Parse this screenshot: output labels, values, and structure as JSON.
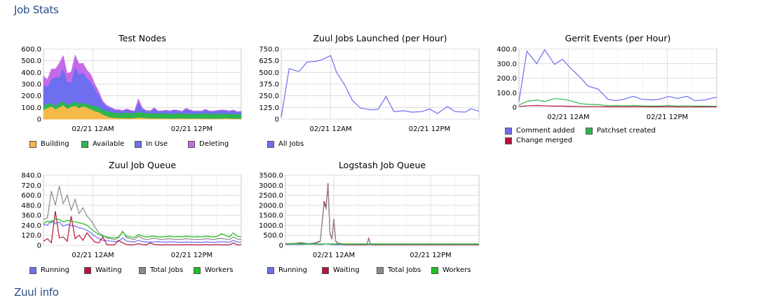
{
  "sections": {
    "job_stats": "Job Stats",
    "zuul_info": "Zuul info"
  },
  "colors": {
    "section_title": "#2a4f86",
    "grid": "#dcdcdc",
    "vgrid": "#d2b8d6"
  },
  "chart_data": [
    {
      "id": "test-nodes",
      "type": "area",
      "title": "Test Nodes",
      "stacked": true,
      "ylim": [
        0,
        600
      ],
      "yticks": [
        "600.0",
        "500.0",
        "400.0",
        "300.0",
        "200.0",
        "100.0",
        "0"
      ],
      "x_range": [
        0,
        100
      ],
      "xticks": [
        {
          "x": 25,
          "label": "02/21 12AM"
        },
        {
          "x": 75,
          "label": "02/21 12PM"
        }
      ],
      "x": [
        0,
        2,
        4,
        6,
        8,
        10,
        12,
        14,
        16,
        18,
        20,
        22,
        24,
        26,
        28,
        30,
        32,
        34,
        36,
        38,
        40,
        42,
        44,
        46,
        48,
        50,
        52,
        54,
        56,
        58,
        60,
        62,
        64,
        66,
        68,
        70,
        72,
        74,
        76,
        78,
        80,
        82,
        84,
        86,
        88,
        90,
        92,
        94,
        96,
        98,
        100
      ],
      "series": [
        {
          "name": "Building",
          "color": "#f5b94a",
          "values": [
            80,
            95,
            110,
            85,
            100,
            120,
            90,
            105,
            115,
            95,
            110,
            100,
            85,
            70,
            60,
            40,
            25,
            15,
            12,
            10,
            10,
            8,
            8,
            10,
            15,
            12,
            10,
            8,
            8,
            7,
            7,
            8,
            6,
            6,
            7,
            8,
            6,
            6,
            6,
            7,
            6,
            6,
            5,
            6,
            6,
            5,
            8,
            6,
            5,
            5,
            4
          ]
        },
        {
          "name": "Available",
          "color": "#2db550",
          "values": [
            40,
            35,
            30,
            25,
            40,
            35,
            30,
            30,
            35,
            40,
            30,
            30,
            35,
            40,
            45,
            40,
            45,
            50,
            40,
            45,
            40,
            50,
            45,
            40,
            50,
            45,
            40,
            45,
            40,
            40,
            45,
            40,
            40,
            40,
            45,
            40,
            40,
            40,
            40,
            40,
            40,
            45,
            40,
            40,
            45,
            40,
            40,
            40,
            40,
            40,
            40
          ]
        },
        {
          "name": "In Use",
          "color": "#6e6ef0",
          "values": [
            170,
            150,
            200,
            250,
            220,
            280,
            200,
            180,
            300,
            250,
            260,
            220,
            200,
            150,
            100,
            60,
            40,
            30,
            25,
            20,
            20,
            25,
            20,
            15,
            80,
            30,
            20,
            15,
            40,
            20,
            15,
            25,
            20,
            30,
            20,
            15,
            40,
            30,
            20,
            20,
            20,
            30,
            20,
            20,
            20,
            30,
            25,
            20,
            30,
            15,
            20
          ]
        },
        {
          "name": "Deleting",
          "color": "#c56ae8",
          "values": [
            80,
            60,
            90,
            70,
            120,
            110,
            70,
            90,
            100,
            90,
            80,
            70,
            60,
            40,
            30,
            15,
            10,
            8,
            8,
            8,
            5,
            5,
            5,
            5,
            30,
            10,
            5,
            5,
            10,
            5,
            5,
            5,
            5,
            5,
            5,
            5,
            8,
            5,
            5,
            5,
            5,
            5,
            5,
            5,
            5,
            5,
            5,
            5,
            5,
            5,
            5
          ]
        }
      ]
    },
    {
      "id": "zuul-jobs-launched",
      "type": "line",
      "title": "Zuul Jobs Launched (per Hour)",
      "ylim": [
        0,
        750
      ],
      "yticks": [
        "750.0",
        "625.0",
        "500.0",
        "375.0",
        "250.0",
        "125.0",
        "0"
      ],
      "x_range": [
        0,
        100
      ],
      "xticks": [
        {
          "x": 25,
          "label": "02/21 12AM"
        },
        {
          "x": 75,
          "label": "02/21 12PM"
        }
      ],
      "x": [
        0,
        4,
        9,
        13,
        18,
        21,
        25,
        28,
        32,
        36,
        40,
        45,
        49,
        53,
        57,
        62,
        66,
        71,
        75,
        79,
        84,
        88,
        93,
        96,
        100
      ],
      "series": [
        {
          "name": "All Jobs",
          "color": "#6e6ef0",
          "values": [
            20,
            540,
            510,
            610,
            620,
            640,
            680,
            500,
            370,
            200,
            120,
            100,
            105,
            240,
            80,
            90,
            75,
            80,
            110,
            60,
            135,
            80,
            75,
            110,
            85
          ]
        }
      ]
    },
    {
      "id": "gerrit-events",
      "type": "line",
      "title": "Gerrit Events (per Hour)",
      "ylim": [
        0,
        400
      ],
      "yticks": [
        "400.0",
        "300.0",
        "200.0",
        "100.0",
        "0"
      ],
      "x_range": [
        0,
        100
      ],
      "xticks": [
        {
          "x": 25,
          "label": "02/21 12AM"
        },
        {
          "x": 75,
          "label": "02/21 12PM"
        }
      ],
      "x": [
        0,
        4,
        9,
        13,
        18,
        22,
        26,
        31,
        35,
        40,
        45,
        49,
        53,
        58,
        62,
        67,
        71,
        76,
        80,
        85,
        89,
        94,
        100
      ],
      "series": [
        {
          "name": "Comment added",
          "color": "#6e6ef0",
          "values": [
            40,
            385,
            300,
            395,
            295,
            330,
            270,
            205,
            145,
            125,
            55,
            45,
            55,
            75,
            55,
            50,
            55,
            75,
            60,
            75,
            45,
            50,
            70
          ]
        },
        {
          "name": "Patchset created",
          "color": "#2db550",
          "values": [
            15,
            40,
            50,
            40,
            60,
            55,
            45,
            25,
            20,
            18,
            10,
            12,
            10,
            12,
            10,
            8,
            8,
            12,
            8,
            10,
            8,
            8,
            6
          ]
        },
        {
          "name": "Change merged",
          "color": "#b8123a",
          "values": [
            5,
            10,
            12,
            10,
            8,
            8,
            6,
            5,
            4,
            4,
            3,
            3,
            3,
            3,
            3,
            2,
            3,
            3,
            2,
            2,
            2,
            2,
            2
          ]
        }
      ]
    },
    {
      "id": "zuul-job-queue",
      "type": "line",
      "title": "Zuul Job Queue",
      "ylim": [
        0,
        840
      ],
      "yticks": [
        "840.0",
        "720.0",
        "600.0",
        "480.0",
        "360.0",
        "240.0",
        "120.0",
        "0"
      ],
      "x_range": [
        0,
        100
      ],
      "xticks": [
        {
          "x": 25,
          "label": "02/21 12AM"
        },
        {
          "x": 75,
          "label": "02/21 12PM"
        }
      ],
      "x": [
        0,
        2,
        4,
        6,
        8,
        10,
        12,
        14,
        16,
        18,
        20,
        22,
        24,
        26,
        28,
        30,
        32,
        34,
        36,
        38,
        40,
        42,
        44,
        46,
        48,
        50,
        52,
        54,
        56,
        58,
        60,
        62,
        64,
        66,
        68,
        70,
        72,
        74,
        76,
        78,
        80,
        82,
        84,
        86,
        88,
        90,
        92,
        94,
        96,
        98,
        100
      ],
      "series": [
        {
          "name": "Running",
          "color": "#6e6ef0",
          "values": [
            250,
            240,
            300,
            260,
            280,
            230,
            250,
            240,
            230,
            210,
            200,
            180,
            150,
            110,
            80,
            60,
            55,
            50,
            45,
            48,
            90,
            50,
            45,
            40,
            60,
            45,
            40,
            38,
            42,
            45,
            40,
            38,
            42,
            40,
            38,
            36,
            40,
            38,
            36,
            38,
            36,
            40,
            38,
            36,
            40,
            42,
            40,
            38,
            60,
            40,
            38
          ]
        },
        {
          "name": "Waiting",
          "color": "#b8123a",
          "values": [
            50,
            80,
            30,
            410,
            90,
            100,
            50,
            350,
            80,
            120,
            60,
            150,
            90,
            40,
            30,
            100,
            10,
            5,
            8,
            60,
            30,
            10,
            5,
            8,
            20,
            10,
            5,
            30,
            10,
            8,
            5,
            10,
            5,
            8,
            6,
            5,
            10,
            5,
            8,
            5,
            5,
            10,
            5,
            8,
            10,
            5,
            8,
            5,
            30,
            5,
            8
          ]
        },
        {
          "name": "Total Jobs",
          "color": "#8a8a8a",
          "values": [
            310,
            330,
            650,
            480,
            710,
            500,
            600,
            420,
            550,
            380,
            450,
            350,
            300,
            220,
            150,
            120,
            90,
            80,
            70,
            90,
            170,
            90,
            80,
            70,
            110,
            80,
            70,
            75,
            85,
            75,
            70,
            75,
            80,
            70,
            72,
            70,
            80,
            75,
            70,
            72,
            70,
            80,
            75,
            70,
            80,
            82,
            75,
            70,
            100,
            75,
            70
          ]
        },
        {
          "name": "Workers",
          "color": "#1ec01e",
          "values": [
            260,
            290,
            270,
            320,
            310,
            280,
            300,
            290,
            280,
            270,
            260,
            240,
            200,
            160,
            130,
            110,
            100,
            95,
            90,
            100,
            160,
            110,
            100,
            95,
            130,
            110,
            100,
            105,
            110,
            100,
            100,
            105,
            110,
            100,
            105,
            100,
            110,
            105,
            100,
            105,
            100,
            110,
            105,
            100,
            110,
            140,
            120,
            100,
            150,
            110,
            100
          ]
        }
      ]
    },
    {
      "id": "logstash-job-queue",
      "type": "line",
      "title": "Logstash Job Queue",
      "ylim": [
        0,
        3500
      ],
      "yticks": [
        "3500.0",
        "3000.0",
        "2500.0",
        "2000.0",
        "1500.0",
        "1000.0",
        "500.0",
        "0"
      ],
      "x_range": [
        0,
        100
      ],
      "xticks": [
        {
          "x": 25,
          "label": "02/21 12AM"
        },
        {
          "x": 75,
          "label": "02/21 12PM"
        }
      ],
      "x": [
        0,
        5,
        8,
        12,
        15,
        18,
        20,
        21,
        22,
        23,
        24,
        25,
        26,
        27,
        28,
        29,
        30,
        32,
        35,
        40,
        42,
        43,
        44,
        46,
        50,
        60,
        70,
        80,
        90,
        100
      ],
      "series": [
        {
          "name": "Running",
          "color": "#6e6ef0",
          "values": [
            40,
            50,
            40,
            60,
            50,
            40,
            60,
            80,
            60,
            50,
            40,
            40,
            30,
            40,
            30,
            40,
            30,
            30,
            30,
            30,
            30,
            30,
            30,
            30,
            30,
            30,
            30,
            30,
            30,
            30
          ]
        },
        {
          "name": "Waiting",
          "color": "#b8123a",
          "values": [
            60,
            80,
            120,
            60,
            100,
            200,
            2200,
            1900,
            3100,
            600,
            300,
            1300,
            200,
            100,
            80,
            60,
            40,
            30,
            30,
            30,
            30,
            350,
            40,
            30,
            30,
            30,
            30,
            30,
            30,
            30
          ]
        },
        {
          "name": "Total Jobs",
          "color": "#8a8a8a",
          "values": [
            80,
            100,
            140,
            80,
            120,
            220,
            2100,
            1800,
            3000,
            650,
            320,
            1250,
            220,
            120,
            100,
            80,
            60,
            50,
            50,
            50,
            50,
            300,
            60,
            50,
            50,
            50,
            50,
            50,
            50,
            50
          ]
        },
        {
          "name": "Workers",
          "color": "#1ec01e",
          "values": [
            70,
            70,
            70,
            70,
            70,
            70,
            70,
            70,
            70,
            70,
            70,
            70,
            70,
            70,
            70,
            70,
            70,
            70,
            70,
            70,
            70,
            70,
            70,
            70,
            70,
            70,
            70,
            70,
            70,
            70
          ]
        }
      ]
    }
  ]
}
